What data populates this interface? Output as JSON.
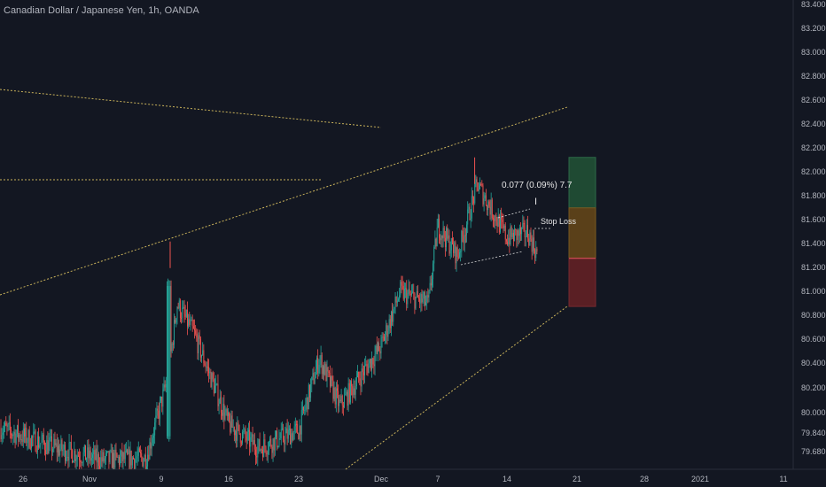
{
  "title": "Canadian Dollar / Japanese Yen, 1h, OANDA",
  "colors": {
    "background": "#131722",
    "up": "#26a69a",
    "down": "#ef5350",
    "axis_text": "#b2b5be",
    "trendline": "#c9b25a",
    "zone_profit": "#1f4a33",
    "zone_mid": "#5a4019",
    "zone_stop": "#5a1f24"
  },
  "chart_data": {
    "type": "candlestick",
    "title": "Canadian Dollar / Japanese Yen, 1h, OANDA",
    "symbol": "CADJPY",
    "interval": "1h",
    "source": "OANDA",
    "x_tick_labels": [
      "26",
      "Nov",
      "9",
      "16",
      "23",
      "Dec",
      "7",
      "14",
      "21",
      "28",
      "2021",
      "11"
    ],
    "y_tick_labels": [
      "83.400",
      "83.200",
      "83.000",
      "82.800",
      "82.600",
      "82.400",
      "82.200",
      "82.000",
      "81.800",
      "81.600",
      "81.400",
      "81.200",
      "81.000",
      "80.800",
      "80.600",
      "80.400",
      "80.200",
      "80.000",
      "79.840",
      "79.680"
    ],
    "ylim": [
      79.6,
      83.45
    ],
    "grid": false,
    "price_series": [
      [
        "Oct 26",
        79.8
      ],
      [
        "Oct 29",
        79.7
      ],
      [
        "Nov 2",
        79.6
      ],
      [
        "Nov 6",
        79.62
      ],
      [
        "Nov 9",
        80.3
      ],
      [
        "Nov 10",
        80.9
      ],
      [
        "Nov 12",
        80.65
      ],
      [
        "Nov 16",
        79.9
      ],
      [
        "Nov 19",
        79.7
      ],
      [
        "Nov 23",
        79.85
      ],
      [
        "Nov 25",
        80.45
      ],
      [
        "Nov 27",
        80.05
      ],
      [
        "Dec 1",
        80.55
      ],
      [
        "Dec 3",
        81.0
      ],
      [
        "Dec 6",
        80.9
      ],
      [
        "Dec 7",
        81.55
      ],
      [
        "Dec 9",
        81.3
      ],
      [
        "Dec 11",
        81.9
      ],
      [
        "Dec 12",
        81.75
      ],
      [
        "Dec 14",
        81.45
      ],
      [
        "Dec 16",
        81.5
      ],
      [
        "Dec 17",
        81.3
      ]
    ],
    "extremes": [
      [
        "Nov 9",
        81.42
      ],
      [
        "Dec 11",
        82.12
      ]
    ],
    "annotations": {
      "position_label": "0.077 (0.09%) 7.7",
      "stop_label": "Stop Loss",
      "zones": {
        "profit_top": 82.12,
        "entry_upper": 81.7,
        "entry_lower": 81.28,
        "stop_bottom": 80.88
      }
    }
  }
}
